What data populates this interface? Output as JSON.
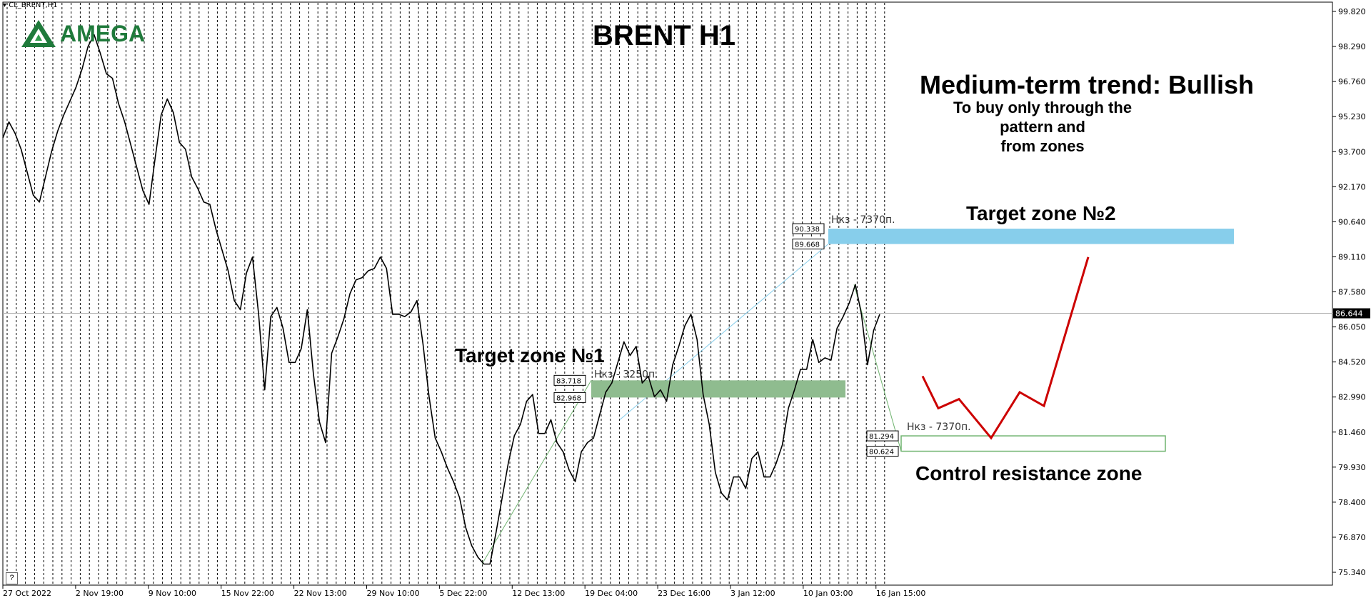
{
  "header": {
    "symbol_label": "CL_BRENT,H1"
  },
  "logo": {
    "text": "AMEGA",
    "icon": "amega-triangle-icon",
    "color": "#1f7a3b"
  },
  "annotations": {
    "title": "BRENT H1",
    "trend": "Medium-term trend: Bullish",
    "trend_note_1": "To buy only through the pattern  and",
    "trend_note_2": "from zones",
    "target_zone_2": "Target zone №2",
    "target_zone_1": "Target zone №1",
    "control_zone": "Control resistance zone",
    "zone2_note": "Нкз - 7370п.",
    "zone1_note": "Нкз - 3250п.",
    "control_note": "Нкз - 7370п.",
    "zone2_prices": [
      "90.338",
      "89.668"
    ],
    "zone1_prices": [
      "83.718",
      "82.968"
    ],
    "control_prices": [
      "81.294",
      "80.624"
    ],
    "help": "?"
  },
  "colors": {
    "zone2": "#87ceeb",
    "zone1": "#8fbc8f",
    "control_border": "#6fb36f",
    "forecast": "#cc0000",
    "price_line": "#000000"
  },
  "chart_data": {
    "type": "line",
    "title": "BRENT H1",
    "xlabel": "",
    "ylabel": "",
    "current_price": "86.644",
    "ylim": [
      75.34,
      99.82
    ],
    "y_ticks": [
      "99.820",
      "98.290",
      "96.760",
      "95.230",
      "93.700",
      "92.170",
      "90.640",
      "89.110",
      "87.580",
      "86.050",
      "84.520",
      "82.990",
      "81.460",
      "79.930",
      "78.400",
      "76.870",
      "75.340"
    ],
    "x_ticks": [
      "27 Oct 2022",
      "2 Nov 19:00",
      "9 Nov 10:00",
      "15 Nov 22:00",
      "22 Nov 13:00",
      "29 Nov 10:00",
      "5 Dec 22:00",
      "12 Dec 13:00",
      "19 Dec 04:00",
      "23 Dec 16:00",
      "3 Jan 12:00",
      "10 Jan 03:00",
      "16 Jan 15:00"
    ],
    "grid": "vertical dashed",
    "series": [
      {
        "values": [
          94.3,
          95.0,
          94.5,
          93.8,
          92.8,
          91.8,
          91.5,
          92.6,
          93.7,
          94.6,
          95.3,
          95.9,
          96.5,
          97.3,
          98.3,
          98.8,
          98.0,
          97.1,
          96.9,
          95.8,
          95.0,
          94.0,
          93.0,
          92.0,
          91.4,
          93.4,
          95.3,
          96.0,
          95.4,
          94.1,
          93.8,
          92.6,
          92.1,
          91.5,
          91.4,
          90.3,
          89.4,
          88.5,
          87.2,
          86.8,
          88.4,
          89.1,
          86.6,
          83.3,
          86.5,
          86.9,
          86.0,
          84.5,
          84.5,
          85.1,
          86.8,
          84.0,
          81.9,
          81.0,
          84.9,
          85.6,
          86.4,
          87.5,
          88.1,
          88.2,
          88.5,
          88.6,
          89.1,
          88.6,
          86.6,
          86.6,
          86.5,
          86.7,
          87.2,
          85.3,
          83.0,
          81.2,
          80.6,
          79.9,
          79.3,
          78.6,
          77.3,
          76.5,
          76.0,
          75.7,
          75.7,
          77.1,
          78.6,
          80.1,
          81.3,
          81.8,
          82.8,
          83.1,
          81.4,
          81.4,
          82.0,
          81.0,
          80.6,
          79.8,
          79.3,
          80.6,
          81.0,
          81.2,
          82.2,
          83.2,
          83.6,
          84.5,
          85.4,
          84.8,
          85.2,
          83.6,
          83.9,
          83.0,
          83.3,
          82.8,
          84.4,
          85.2,
          86.1,
          86.6,
          85.5,
          83.1,
          81.8,
          79.7,
          78.8,
          78.5,
          79.5,
          79.5,
          79.0,
          80.3,
          80.6,
          79.5,
          79.5,
          80.1,
          80.9,
          82.5,
          83.3,
          84.2,
          84.2,
          85.5,
          84.5,
          84.7,
          84.6,
          86.0,
          86.5,
          87.1,
          87.9,
          86.6,
          84.4,
          85.9,
          86.6
        ]
      }
    ],
    "forecast_path": [
      83.9,
      82.5,
      82.9,
      81.2,
      83.2,
      82.6,
      89.1
    ]
  }
}
